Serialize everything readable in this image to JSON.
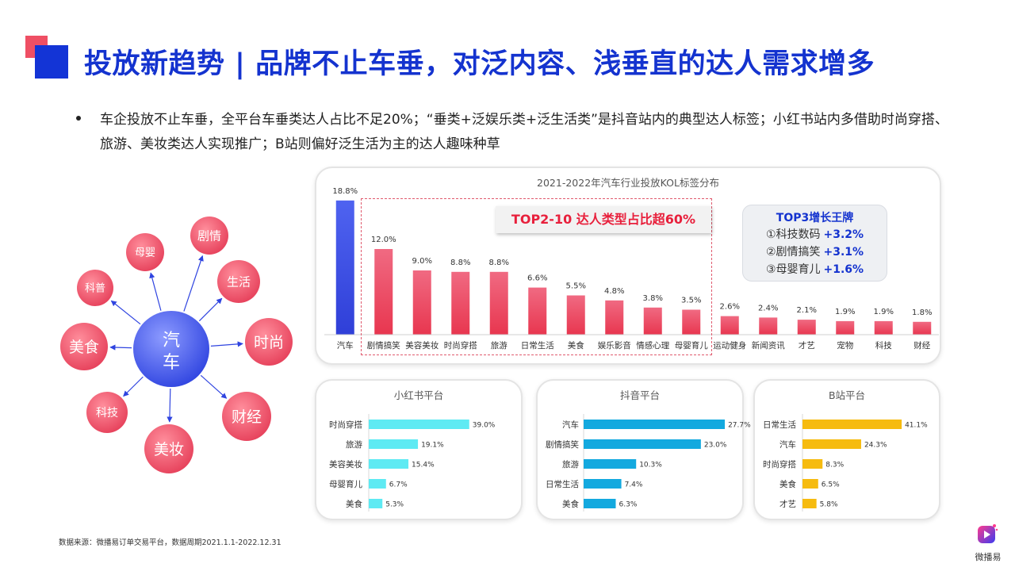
{
  "title": "投放新趋势 | 品牌不止车垂，对泛内容、浅垂直的达人需求增多",
  "bullet": "车企投放不止车垂，全平台车垂类达人占比不足20%；“垂类+泛娱乐类+泛生活类”是抖音站内的典型达人标签；小红书站内多借助时尚穿搭、旅游、美妆类达人实现推广；B站则偏好泛生活为主的达人趣味种草",
  "bubbles": {
    "center": "汽车",
    "items": [
      "母婴",
      "剧情",
      "科普",
      "生活",
      "美食",
      "时尚",
      "科技",
      "财经",
      "美妆"
    ]
  },
  "highlight": {
    "callout": "TOP2-10 达人类型占比超60%",
    "growth_title": "TOP3增长王牌",
    "growth_items": [
      {
        "label": "①科技数码",
        "value": "+3.2%"
      },
      {
        "label": "②剧情搞笑",
        "value": "+3.1%"
      },
      {
        "label": "③母婴育儿",
        "value": "+1.6%"
      }
    ]
  },
  "chart_data": [
    {
      "type": "bar",
      "title": "2021-2022年汽车行业投放KOL标签分布",
      "categories": [
        "汽车",
        "剧情搞笑",
        "美容美妆",
        "时尚穿搭",
        "旅游",
        "日常生活",
        "美食",
        "娱乐影音",
        "情感心理",
        "母婴育儿",
        "运动健身",
        "新闻资讯",
        "才艺",
        "宠物",
        "科技",
        "财经"
      ],
      "values": [
        18.8,
        12.0,
        9.0,
        8.8,
        8.8,
        6.6,
        5.5,
        4.8,
        3.8,
        3.5,
        2.6,
        2.4,
        2.1,
        1.9,
        1.9,
        1.8
      ],
      "labels": [
        "18.8%",
        "12.0%",
        "9.0%",
        "8.8%",
        "8.8%",
        "6.6%",
        "5.5%",
        "4.8%",
        "3.8%",
        "3.5%",
        "2.6%",
        "2.4%",
        "2.1%",
        "1.9%",
        "1.9%",
        "1.8%"
      ],
      "ylim": [
        0,
        20
      ],
      "colors": {
        "first": "#2f3fd8",
        "top": "#f04a68",
        "rest": "#e8364f"
      }
    },
    {
      "type": "bar",
      "title": "小红书平台",
      "categories": [
        "时尚穿搭",
        "旅游",
        "美容美妆",
        "母婴育儿",
        "美食"
      ],
      "values": [
        39.0,
        19.1,
        15.4,
        6.7,
        5.3
      ],
      "labels": [
        "39.0%",
        "19.1%",
        "15.4%",
        "6.7%",
        "5.3%"
      ],
      "xlim": [
        0,
        40
      ],
      "color": "#5eeaf3"
    },
    {
      "type": "bar",
      "title": "抖音平台",
      "categories": [
        "汽车",
        "剧情搞笑",
        "旅游",
        "日常生活",
        "美食"
      ],
      "values": [
        27.7,
        23.0,
        10.3,
        7.4,
        6.3
      ],
      "labels": [
        "27.7%",
        "23.0%",
        "10.3%",
        "7.4%",
        "6.3%"
      ],
      "xlim": [
        0,
        28
      ],
      "color": "#13a9df"
    },
    {
      "type": "bar",
      "title": "B站平台",
      "categories": [
        "日常生活",
        "汽车",
        "时尚穿搭",
        "美食",
        "才艺"
      ],
      "values": [
        41.1,
        24.3,
        8.3,
        6.5,
        5.8
      ],
      "labels": [
        "41.1%",
        "24.3%",
        "8.3%",
        "6.5%",
        "5.8%"
      ],
      "xlim": [
        0,
        46
      ],
      "color": "#f6bb0f"
    }
  ],
  "footnote": "数据来源：微播易订单交易平台，数据周期2021.1.1-2022.12.31",
  "logo_text": "微播易"
}
